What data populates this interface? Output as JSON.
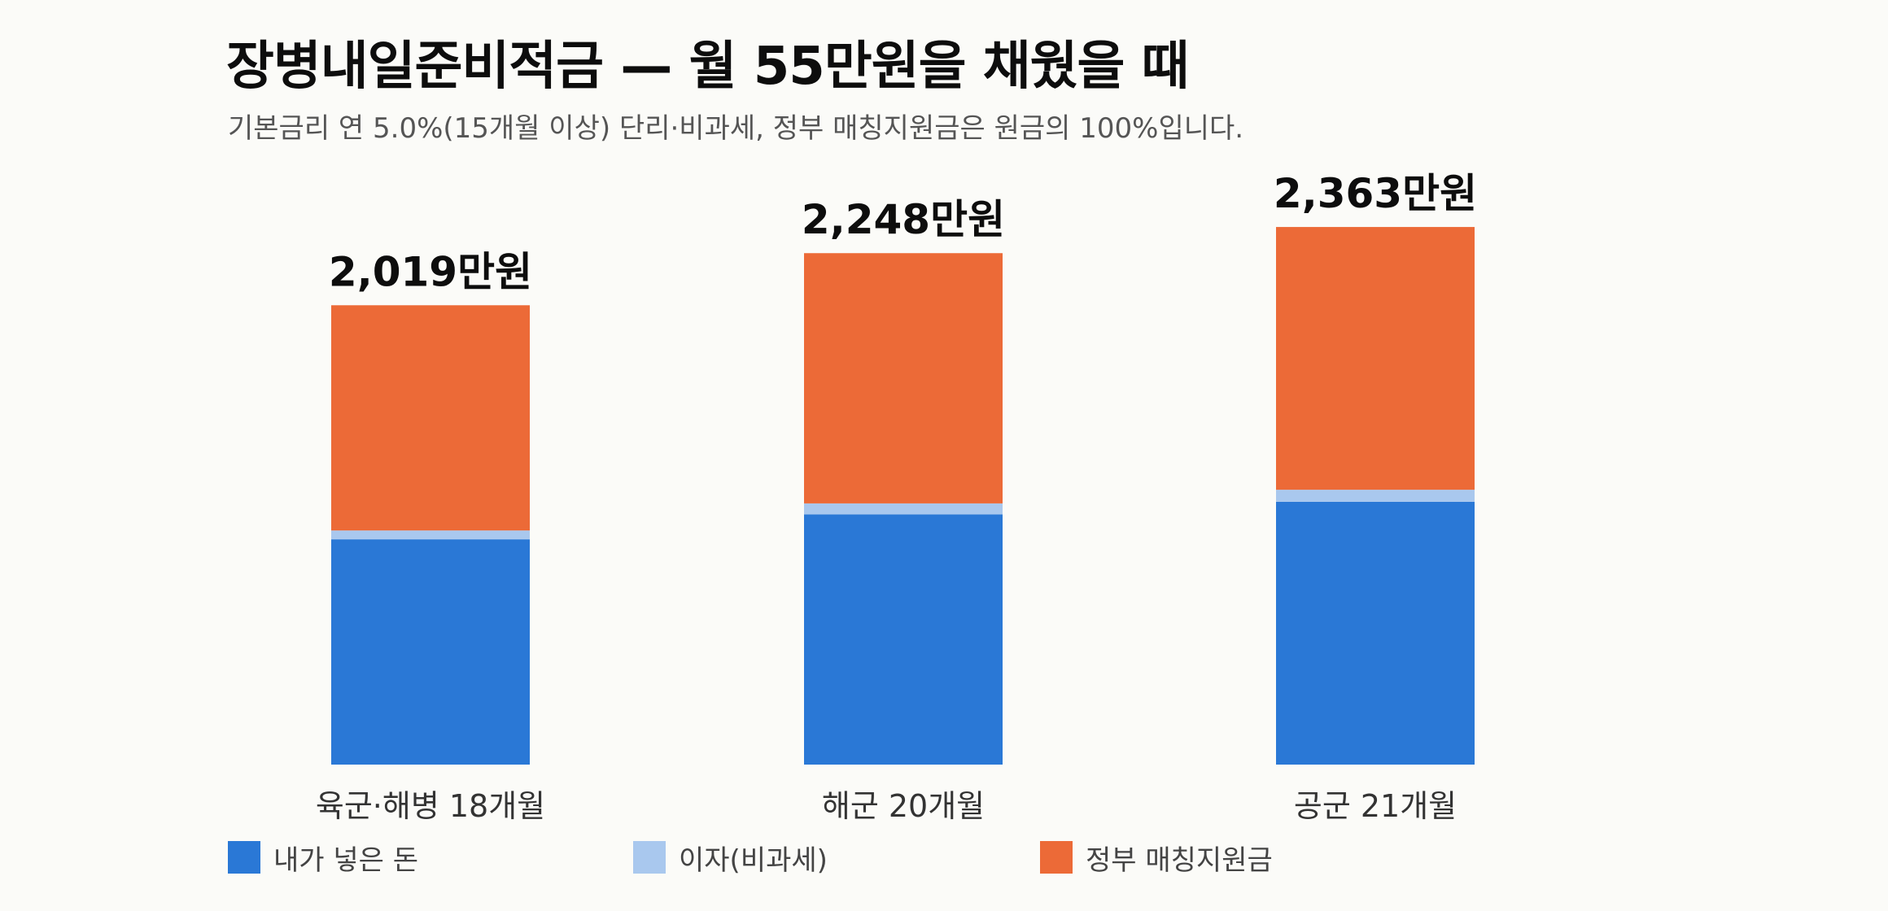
{
  "header": {
    "title": "장병내일준비적금 — 월 55만원을 채웠을 때",
    "subtitle": "기본금리 연 5.0%(15개월 이상) 단리·비과세, 정부 매칭지원금은 원금의 100%입니다."
  },
  "colors": {
    "principal": "#2a78d6",
    "interest": "#a9c8ee",
    "matching": "#ec6a37"
  },
  "legend": {
    "items": [
      {
        "label": "내가 넣은 돈",
        "color": "#2a78d6"
      },
      {
        "label": "이자(비과세)",
        "color": "#a9c8ee"
      },
      {
        "label": "정부 매칭지원금",
        "color": "#ec6a37"
      }
    ]
  },
  "chart_data": {
    "type": "bar",
    "stacked": true,
    "categories": [
      "육군·해병 18개월",
      "해군 20개월",
      "공군 21개월"
    ],
    "series": [
      {
        "name": "내가 넣은 돈",
        "values": [
          990,
          1100,
          1155
        ]
      },
      {
        "name": "이자(비과세)",
        "values": [
          39,
          48,
          53
        ]
      },
      {
        "name": "정부 매칭지원금",
        "values": [
          990,
          1100,
          1155
        ]
      }
    ],
    "totals": [
      2019,
      2248,
      2363
    ],
    "total_labels": [
      "2,019만원",
      "2,248만원",
      "2,363만원"
    ],
    "title": "장병내일준비적금 — 월 55만원을 채웠을 때",
    "xlabel": "",
    "ylabel": "",
    "grid": false,
    "legend_position": "bottom-left"
  }
}
